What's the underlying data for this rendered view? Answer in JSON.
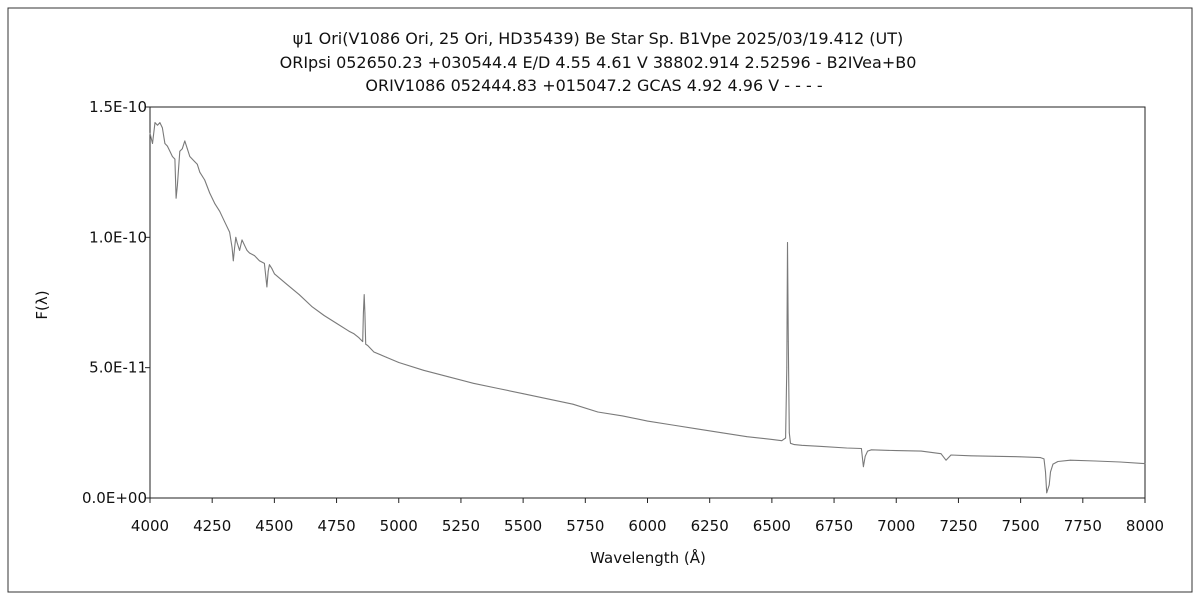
{
  "chart_data": {
    "type": "line",
    "title_lines": [
      "ψ1 Ori(V1086 Ori, 25 Ori, HD35439)    Be Star    Sp. B1Vpe     2025/03/19.412 (UT)",
      "ORIpsi 052650.23 +030544.4 E/D 4.55 4.61 V 38802.914 2.52596 - B2IVea+B0",
      "ORIV1086 052444.83 +015047.2 GCAS 4.92 4.96 V - - - -"
    ],
    "xlabel": "Wavelength (Å)",
    "ylabel": "F(λ)",
    "xlim": [
      4000,
      8000
    ],
    "ylim": [
      0,
      1.5e-10
    ],
    "x_ticks": [
      "4000",
      "4250",
      "4500",
      "4750",
      "5000",
      "5250",
      "5500",
      "5750",
      "6000",
      "6250",
      "6500",
      "6750",
      "7000",
      "7250",
      "7500",
      "7750",
      "8000"
    ],
    "y_ticks": [
      {
        "value": 0,
        "label": "0.0E+00"
      },
      {
        "value": 5e-11,
        "label": "5.0E-11"
      },
      {
        "value": 1e-10,
        "label": "1.0E-10"
      },
      {
        "value": 1.5e-10,
        "label": "1.5E-10"
      }
    ],
    "grid": false,
    "line_color": "#7a7a7a",
    "series": [
      {
        "x": [
          4000,
          4010,
          4020,
          4030,
          4040,
          4050,
          4060,
          4070,
          4080,
          4090,
          4100,
          4105,
          4110,
          4120,
          4130,
          4140,
          4150,
          4160,
          4170,
          4180,
          4190,
          4200,
          4220,
          4240,
          4260,
          4280,
          4300,
          4320,
          4330,
          4335,
          4340,
          4345,
          4350,
          4360,
          4370,
          4380,
          4390,
          4400,
          4420,
          4440,
          4460,
          4470,
          4475,
          4480,
          4490,
          4500,
          4550,
          4600,
          4650,
          4700,
          4750,
          4800,
          4820,
          4840,
          4855,
          4858,
          4861,
          4864,
          4867,
          4875,
          4890,
          4900,
          4950,
          5000,
          5100,
          5200,
          5300,
          5400,
          5500,
          5600,
          5700,
          5800,
          5900,
          6000,
          6100,
          6200,
          6300,
          6400,
          6500,
          6540,
          6555,
          6560,
          6563,
          6566,
          6570,
          6575,
          6590,
          6620,
          6700,
          6800,
          6860,
          6868,
          6875,
          6885,
          6900,
          7000,
          7100,
          7180,
          7200,
          7220,
          7300,
          7400,
          7500,
          7580,
          7594,
          7600,
          7605,
          7615,
          7620,
          7630,
          7650,
          7700,
          7800,
          7900,
          8000
        ],
        "y": [
          1.4e-10,
          1.36e-10,
          1.44e-10,
          1.43e-10,
          1.44e-10,
          1.42e-10,
          1.36e-10,
          1.35e-10,
          1.33e-10,
          1.31e-10,
          1.3e-10,
          1.15e-10,
          1.2e-10,
          1.33e-10,
          1.34e-10,
          1.37e-10,
          1.34e-10,
          1.31e-10,
          1.3e-10,
          1.29e-10,
          1.28e-10,
          1.25e-10,
          1.22e-10,
          1.17e-10,
          1.13e-10,
          1.1e-10,
          1.06e-10,
          1.02e-10,
          9.6e-11,
          9.1e-11,
          9.6e-11,
          1e-10,
          9.8e-11,
          9.5e-11,
          9.9e-11,
          9.7e-11,
          9.5e-11,
          9.4e-11,
          9.3e-11,
          9.1e-11,
          9e-11,
          8.1e-11,
          8.7e-11,
          8.95e-11,
          8.8e-11,
          8.6e-11,
          8.2e-11,
          7.8e-11,
          7.35e-11,
          7e-11,
          6.7e-11,
          6.4e-11,
          6.3e-11,
          6.15e-11,
          6e-11,
          7.1e-11,
          7.8e-11,
          7.1e-11,
          5.9e-11,
          5.85e-11,
          5.7e-11,
          5.6e-11,
          5.4e-11,
          5.2e-11,
          4.9e-11,
          4.65e-11,
          4.4e-11,
          4.2e-11,
          4e-11,
          3.8e-11,
          3.6e-11,
          3.3e-11,
          3.15e-11,
          2.95e-11,
          2.8e-11,
          2.65e-11,
          2.5e-11,
          2.35e-11,
          2.25e-11,
          2.2e-11,
          2.3e-11,
          5e-11,
          9.8e-11,
          6e-11,
          2.5e-11,
          2.1e-11,
          2.05e-11,
          2.02e-11,
          1.98e-11,
          1.92e-11,
          1.9e-11,
          1.2e-11,
          1.6e-11,
          1.8e-11,
          1.85e-11,
          1.82e-11,
          1.8e-11,
          1.7e-11,
          1.45e-11,
          1.65e-11,
          1.62e-11,
          1.6e-11,
          1.58e-11,
          1.55e-11,
          1.5e-11,
          1e-11,
          2e-12,
          5e-12,
          1e-11,
          1.3e-11,
          1.4e-11,
          1.45e-11,
          1.42e-11,
          1.38e-11,
          1.32e-11
        ]
      }
    ]
  }
}
